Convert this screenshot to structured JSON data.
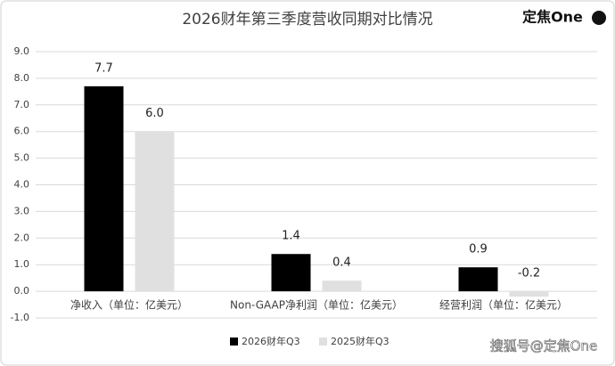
{
  "chart_data": {
    "type": "bar",
    "title": "2026财年第三季度营收同期对比情况",
    "logo": "定焦One",
    "watermark": "搜狐号@定焦One",
    "categories": [
      "净收入（单位：亿美元）",
      "Non-GAAP净利润（单位：亿美元）",
      "经营利润（单位：亿美元）"
    ],
    "series": [
      {
        "name": "2026财年Q3",
        "color": "#000000",
        "values": [
          7.7,
          1.4,
          0.9
        ]
      },
      {
        "name": "2025财年Q3",
        "color": "#e0e0e0",
        "values": [
          6.0,
          0.4,
          -0.2
        ],
        "value_labels": [
          "6.0",
          "0.4",
          "-0.2"
        ]
      }
    ],
    "ylim": [
      -1,
      9
    ],
    "yticks": [
      {
        "value": -1,
        "label": "-1.0"
      },
      {
        "value": 0,
        "label": "0.0"
      },
      {
        "value": 1,
        "label": "1.0"
      },
      {
        "value": 2,
        "label": "2.0"
      },
      {
        "value": 3,
        "label": "3.0"
      },
      {
        "value": 4,
        "label": "4.0"
      },
      {
        "value": 5,
        "label": "5.0"
      },
      {
        "value": 6,
        "label": "6.0"
      },
      {
        "value": 7,
        "label": "7.0"
      },
      {
        "value": 8,
        "label": "8.0"
      },
      {
        "value": 9,
        "label": "9.0"
      }
    ],
    "grid": true,
    "legend": "bottom"
  }
}
